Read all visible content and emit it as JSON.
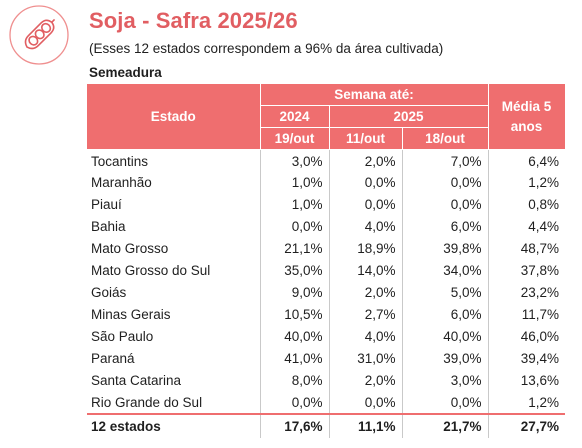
{
  "header": {
    "title": "Soja - Safra 2025/26",
    "subtitle": "(Esses 12 estados correspondem a 96% da área cultivada)",
    "section": "Semeadura",
    "logo_icon": "soybean-pod-icon",
    "accent_color": "#ef6e6f"
  },
  "table": {
    "col_estado": "Estado",
    "semana_label": "Semana até:",
    "media_label": "Média 5 anos",
    "year_2024": "2024",
    "year_2025": "2025",
    "date_2024": "19/out",
    "date_2025a": "11/out",
    "date_2025b": "18/out",
    "rows": [
      {
        "estado": "Tocantins",
        "y2024": "3,0%",
        "d1": "2,0%",
        "d2": "7,0%",
        "media": "6,4%"
      },
      {
        "estado": "Maranhão",
        "y2024": "1,0%",
        "d1": "0,0%",
        "d2": "0,0%",
        "media": "1,2%"
      },
      {
        "estado": "Piauí",
        "y2024": "1,0%",
        "d1": "0,0%",
        "d2": "0,0%",
        "media": "0,8%"
      },
      {
        "estado": "Bahia",
        "y2024": "0,0%",
        "d1": "4,0%",
        "d2": "6,0%",
        "media": "4,4%"
      },
      {
        "estado": "Mato Grosso",
        "y2024": "21,1%",
        "d1": "18,9%",
        "d2": "39,8%",
        "media": "48,7%"
      },
      {
        "estado": "Mato Grosso do Sul",
        "y2024": "35,0%",
        "d1": "14,0%",
        "d2": "34,0%",
        "media": "37,8%"
      },
      {
        "estado": "Goiás",
        "y2024": "9,0%",
        "d1": "2,0%",
        "d2": "5,0%",
        "media": "23,2%"
      },
      {
        "estado": "Minas Gerais",
        "y2024": "10,5%",
        "d1": "2,7%",
        "d2": "6,0%",
        "media": "11,7%"
      },
      {
        "estado": "São Paulo",
        "y2024": "40,0%",
        "d1": "4,0%",
        "d2": "40,0%",
        "media": "46,0%"
      },
      {
        "estado": "Paraná",
        "y2024": "41,0%",
        "d1": "31,0%",
        "d2": "39,0%",
        "media": "39,4%"
      },
      {
        "estado": "Santa Catarina",
        "y2024": "8,0%",
        "d1": "2,0%",
        "d2": "3,0%",
        "media": "13,6%"
      },
      {
        "estado": "Rio Grande do Sul",
        "y2024": "0,0%",
        "d1": "0,0%",
        "d2": "0,0%",
        "media": "1,2%"
      }
    ],
    "total": {
      "estado": "12 estados",
      "y2024": "17,6%",
      "d1": "11,1%",
      "d2": "21,7%",
      "media": "27,7%"
    }
  }
}
